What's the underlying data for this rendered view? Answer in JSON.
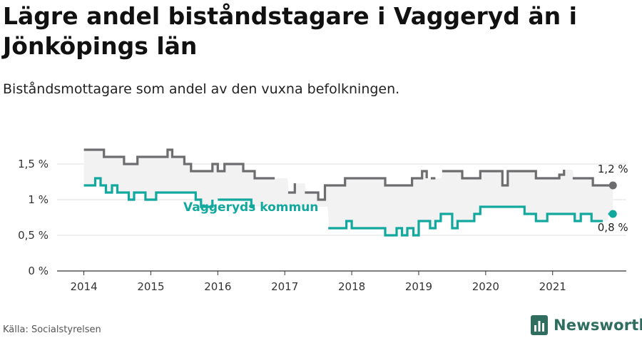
{
  "title": "Lägre andel biståndstagare i Vaggeryd än i Jönköpings län",
  "subtitle": "Biståndsmottagare som andel av den vuxna befolkningen.",
  "source": "Källa: Socialstyrelsen",
  "brand": "Newsworthy",
  "colors": {
    "region": "#6d6d70",
    "municipality": "#13a89e",
    "band": "#f2f2f2",
    "gridline": "#e2e2e2",
    "axis": "#333333",
    "brand": "#2f6e5f"
  },
  "chart_data": {
    "type": "line",
    "ylim": [
      0,
      1.9
    ],
    "yticks": [
      0,
      0.5,
      1,
      1.5
    ],
    "ytick_labels": [
      "0 %",
      "0,5 %",
      "1 %",
      "1,5 %"
    ],
    "xlim": [
      2013.6,
      2022.1
    ],
    "xticks": [
      2014,
      2015,
      2016,
      2017,
      2018,
      2019,
      2020,
      2021
    ],
    "xtick_labels": [
      "2014",
      "2015",
      "2016",
      "2017",
      "2018",
      "2019",
      "2020",
      "2021"
    ],
    "grid": true,
    "series": [
      {
        "name": "",
        "end_label": "1,2 %",
        "color": "#6d6d70",
        "points": [
          [
            2014.0,
            1.7
          ],
          [
            2014.1,
            1.7
          ],
          [
            2014.2,
            1.7
          ],
          [
            2014.3,
            1.6
          ],
          [
            2014.4,
            1.6
          ],
          [
            2014.5,
            1.6
          ],
          [
            2014.6,
            1.5
          ],
          [
            2014.7,
            1.5
          ],
          [
            2014.8,
            1.6
          ],
          [
            2014.9,
            1.6
          ],
          [
            2015.0,
            1.6
          ],
          [
            2015.1,
            1.6
          ],
          [
            2015.2,
            1.6
          ],
          [
            2015.25,
            1.7
          ],
          [
            2015.32,
            1.6
          ],
          [
            2015.42,
            1.6
          ],
          [
            2015.5,
            1.5
          ],
          [
            2015.6,
            1.4
          ],
          [
            2015.7,
            1.4
          ],
          [
            2015.8,
            1.4
          ],
          [
            2015.85,
            1.4
          ],
          [
            2015.92,
            1.5
          ],
          [
            2016.0,
            1.4
          ],
          [
            2016.1,
            1.5
          ],
          [
            2016.2,
            1.5
          ],
          [
            2016.3,
            1.5
          ],
          [
            2016.38,
            1.4
          ],
          [
            2016.45,
            1.4
          ],
          [
            2016.55,
            1.3
          ],
          [
            2016.65,
            1.3
          ],
          [
            2016.75,
            1.3
          ],
          [
            2016.85,
            1.3
          ],
          null,
          [
            2017.05,
            1.1
          ],
          [
            2017.15,
            1.23
          ],
          null,
          [
            2017.3,
            1.1
          ],
          [
            2017.4,
            1.1
          ],
          [
            2017.5,
            1.0
          ],
          [
            2017.6,
            1.2
          ],
          [
            2017.7,
            1.2
          ],
          [
            2017.8,
            1.2
          ],
          [
            2017.9,
            1.3
          ],
          [
            2018.0,
            1.3
          ],
          [
            2018.1,
            1.3
          ],
          [
            2018.2,
            1.3
          ],
          [
            2018.3,
            1.3
          ],
          [
            2018.4,
            1.3
          ],
          [
            2018.5,
            1.2
          ],
          [
            2018.6,
            1.2
          ],
          [
            2018.7,
            1.2
          ],
          [
            2018.8,
            1.2
          ],
          [
            2018.9,
            1.3
          ],
          [
            2019.0,
            1.3
          ],
          [
            2019.05,
            1.4
          ],
          [
            2019.12,
            1.3
          ],
          null,
          [
            2019.18,
            1.3
          ],
          [
            2019.25,
            1.3
          ],
          null,
          [
            2019.35,
            1.4
          ],
          [
            2019.45,
            1.4
          ],
          [
            2019.55,
            1.4
          ],
          [
            2019.65,
            1.3
          ],
          [
            2019.75,
            1.3
          ],
          [
            2019.85,
            1.3
          ],
          [
            2019.92,
            1.4
          ],
          [
            2020.0,
            1.4
          ],
          [
            2020.1,
            1.4
          ],
          [
            2020.18,
            1.4
          ],
          [
            2020.25,
            1.2
          ],
          [
            2020.33,
            1.4
          ],
          [
            2020.4,
            1.4
          ],
          [
            2020.5,
            1.4
          ],
          [
            2020.6,
            1.4
          ],
          [
            2020.68,
            1.4
          ],
          [
            2020.75,
            1.3
          ],
          [
            2020.85,
            1.3
          ],
          [
            2020.95,
            1.3
          ],
          [
            2021.05,
            1.3
          ],
          [
            2021.1,
            1.35
          ],
          [
            2021.17,
            1.42
          ],
          null,
          [
            2021.3,
            1.3
          ],
          [
            2021.4,
            1.3
          ],
          [
            2021.5,
            1.3
          ],
          [
            2021.6,
            1.2
          ],
          [
            2021.7,
            1.2
          ],
          [
            2021.8,
            1.2
          ],
          [
            2021.9,
            1.2
          ]
        ]
      },
      {
        "name": "Vaggeryds kommun",
        "end_label": "0,8 %",
        "color": "#13a89e",
        "points": [
          [
            2014.0,
            1.2
          ],
          [
            2014.08,
            1.2
          ],
          [
            2014.17,
            1.3
          ],
          [
            2014.25,
            1.2
          ],
          [
            2014.33,
            1.1
          ],
          [
            2014.42,
            1.2
          ],
          [
            2014.5,
            1.1
          ],
          [
            2014.58,
            1.1
          ],
          [
            2014.67,
            1.0
          ],
          [
            2014.75,
            1.1
          ],
          [
            2014.83,
            1.1
          ],
          [
            2014.92,
            1.0
          ],
          [
            2015.0,
            1.0
          ],
          [
            2015.08,
            1.1
          ],
          [
            2015.17,
            1.1
          ],
          [
            2015.25,
            1.1
          ],
          [
            2015.33,
            1.1
          ],
          [
            2015.42,
            1.1
          ],
          [
            2015.5,
            1.1
          ],
          [
            2015.58,
            1.1
          ],
          [
            2015.67,
            1.0
          ],
          [
            2015.75,
            0.9
          ],
          [
            2015.83,
            0.9
          ],
          [
            2015.92,
            1.0
          ],
          null,
          [
            2016.0,
            1.0
          ],
          [
            2016.08,
            1.0
          ],
          [
            2016.17,
            1.0
          ],
          [
            2016.25,
            1.0
          ],
          [
            2016.33,
            1.0
          ],
          [
            2016.42,
            1.0
          ],
          [
            2016.5,
            0.9
          ],
          [
            2016.55,
            0.9
          ],
          null,
          [
            2017.65,
            0.6
          ],
          [
            2017.75,
            0.6
          ],
          [
            2017.85,
            0.6
          ],
          [
            2017.92,
            0.7
          ],
          [
            2018.0,
            0.6
          ],
          [
            2018.08,
            0.6
          ],
          [
            2018.17,
            0.6
          ],
          [
            2018.25,
            0.6
          ],
          [
            2018.33,
            0.6
          ],
          [
            2018.42,
            0.6
          ],
          [
            2018.5,
            0.5
          ],
          [
            2018.58,
            0.5
          ],
          [
            2018.67,
            0.6
          ],
          [
            2018.75,
            0.5
          ],
          [
            2018.83,
            0.6
          ],
          [
            2018.92,
            0.5
          ],
          [
            2019.0,
            0.7
          ],
          [
            2019.08,
            0.7
          ],
          [
            2019.17,
            0.6
          ],
          [
            2019.25,
            0.7
          ],
          [
            2019.33,
            0.8
          ],
          [
            2019.42,
            0.8
          ],
          [
            2019.5,
            0.6
          ],
          [
            2019.58,
            0.7
          ],
          [
            2019.67,
            0.7
          ],
          [
            2019.75,
            0.7
          ],
          [
            2019.83,
            0.8
          ],
          [
            2019.92,
            0.9
          ],
          [
            2020.0,
            0.9
          ],
          [
            2020.08,
            0.9
          ],
          [
            2020.17,
            0.9
          ],
          [
            2020.25,
            0.9
          ],
          [
            2020.33,
            0.9
          ],
          [
            2020.42,
            0.9
          ],
          [
            2020.5,
            0.9
          ],
          [
            2020.58,
            0.8
          ],
          [
            2020.67,
            0.8
          ],
          [
            2020.75,
            0.7
          ],
          [
            2020.83,
            0.7
          ],
          [
            2020.92,
            0.8
          ],
          [
            2021.0,
            0.8
          ],
          [
            2021.08,
            0.8
          ],
          [
            2021.17,
            0.8
          ],
          [
            2021.25,
            0.8
          ],
          [
            2021.33,
            0.7
          ],
          [
            2021.42,
            0.8
          ],
          [
            2021.5,
            0.8
          ],
          [
            2021.58,
            0.7
          ],
          [
            2021.67,
            0.7
          ],
          [
            2021.75,
            0.7
          ],
          null,
          [
            2021.83,
            0.8
          ],
          [
            2021.9,
            0.8
          ]
        ]
      }
    ]
  }
}
